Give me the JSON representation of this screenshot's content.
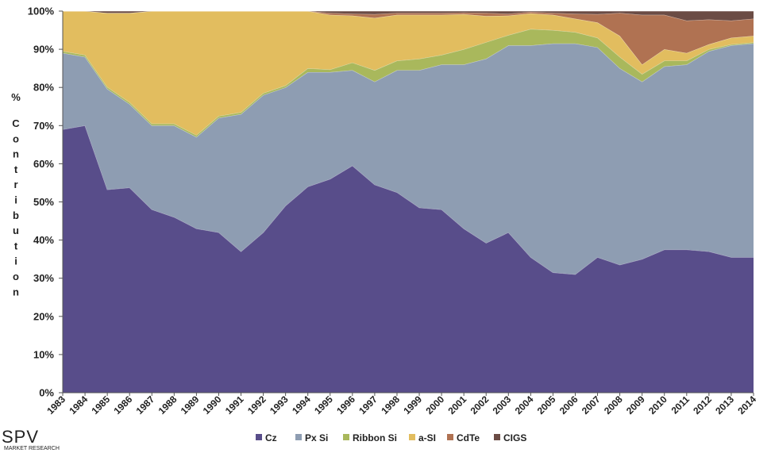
{
  "chart_data": {
    "type": "area",
    "stacked": true,
    "normalized": true,
    "title": "",
    "xlabel": "",
    "ylabel": "% Contribution",
    "ylim": [
      0,
      100
    ],
    "yticks": [
      "0%",
      "10%",
      "20%",
      "30%",
      "40%",
      "50%",
      "60%",
      "70%",
      "80%",
      "90%",
      "100%"
    ],
    "grid": false,
    "legend_position": "bottom",
    "x": [
      "1983",
      "1984",
      "1985",
      "1986",
      "1987",
      "1988",
      "1989",
      "1990",
      "1991",
      "1992",
      "1993",
      "1994",
      "1995",
      "1996",
      "1997",
      "1998",
      "1999",
      "2000",
      "2001",
      "2002",
      "2003",
      "2004",
      "2005",
      "2006",
      "2007",
      "2008",
      "2009",
      "2010",
      "2011",
      "2012",
      "2013",
      "2014"
    ],
    "series": [
      {
        "name": "Cz",
        "color": "#584d8a",
        "values": [
          69,
          70,
          53.5,
          54,
          48,
          46,
          43,
          42,
          37,
          42,
          49,
          54,
          56,
          59.5,
          54.5,
          52.5,
          48.5,
          48,
          43,
          39,
          42,
          35.5,
          31.5,
          31,
          35.5,
          33.5,
          35,
          37.5,
          37.5,
          37,
          35.5,
          35.5
        ]
      },
      {
        "name": "Px Si",
        "color": "#8e9db2",
        "values": [
          20,
          18,
          26.5,
          22,
          22,
          24,
          24,
          30,
          36,
          36,
          31,
          30,
          28,
          25,
          27,
          32,
          36,
          38,
          43,
          48,
          49,
          55.5,
          60,
          60.5,
          55,
          51.5,
          46.5,
          48,
          48.5,
          52.5,
          55.5,
          56
        ]
      },
      {
        "name": "Ribbon Si",
        "color": "#a9b85c",
        "values": [
          0.5,
          0.5,
          0.5,
          0.5,
          0.5,
          0.5,
          0.5,
          0.5,
          0.5,
          0.5,
          0.5,
          1,
          0.7,
          2,
          3,
          2.5,
          3,
          2.5,
          4,
          4.3,
          2.7,
          4.3,
          3.5,
          3,
          2.5,
          3,
          2,
          1.5,
          1,
          0.5,
          0.3,
          0.3
        ]
      },
      {
        "name": "a-SI",
        "color": "#e2bd5f",
        "values": [
          10.5,
          11.5,
          19.5,
          23.5,
          29.5,
          29.5,
          32.5,
          27.5,
          26.5,
          21.5,
          19.5,
          15,
          14.3,
          12.3,
          13.7,
          12,
          11.5,
          10.5,
          9.2,
          6.8,
          5.1,
          4.1,
          4,
          3.5,
          4,
          5.5,
          2.5,
          3,
          2,
          1.3,
          1.7,
          1.7
        ]
      },
      {
        "name": "CdTe",
        "color": "#b07252",
        "values": [
          0,
          0,
          0,
          0,
          0,
          0,
          0,
          0,
          0,
          0,
          0,
          0,
          0.5,
          0.5,
          1,
          0.5,
          0.5,
          0.5,
          0.4,
          0.8,
          0.5,
          0.4,
          0.5,
          1.3,
          2.2,
          6,
          13,
          9,
          8.5,
          6.5,
          4.5,
          4.5
        ]
      },
      {
        "name": "CIGS",
        "color": "#6b4c45",
        "values": [
          0,
          0,
          0.5,
          0.5,
          0,
          0,
          0,
          0,
          0,
          0,
          0,
          0,
          0.5,
          0.7,
          0.8,
          0.5,
          0.5,
          0.5,
          0.4,
          0.5,
          0.7,
          0.2,
          0.5,
          0.7,
          0.8,
          0.5,
          1,
          1,
          2.5,
          2.2,
          2.5,
          2
        ]
      }
    ]
  },
  "logo": {
    "text": "SPV",
    "subtext": "MARKET RESEARCH"
  }
}
